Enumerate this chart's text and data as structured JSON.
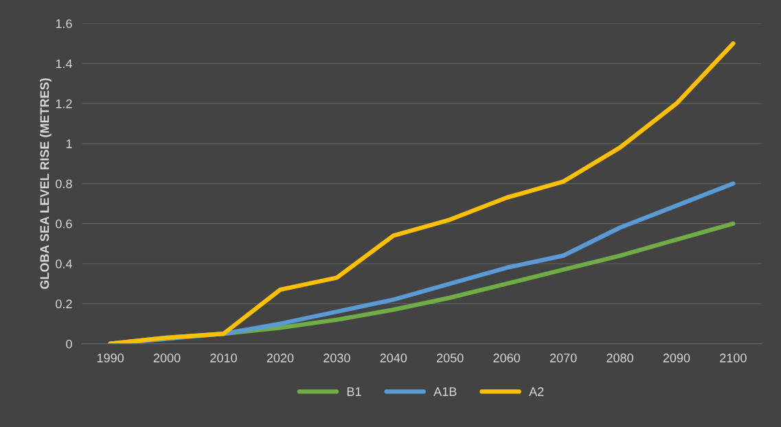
{
  "chart_data": {
    "type": "line",
    "ylabel": "GLOBA SEA LEVEL RISE (METRES)",
    "categories": [
      "1990",
      "2000",
      "2010",
      "2020",
      "2030",
      "2040",
      "2050",
      "2060",
      "2070",
      "2080",
      "2090",
      "2100"
    ],
    "series": [
      {
        "name": "B1",
        "color": "#70ad47",
        "values": [
          0,
          0.03,
          0.05,
          0.08,
          0.12,
          0.17,
          0.23,
          0.3,
          0.37,
          0.44,
          0.52,
          0.6
        ]
      },
      {
        "name": "A1B",
        "color": "#5b9bd5",
        "values": [
          0,
          null,
          0.05,
          0.1,
          0.16,
          0.22,
          0.3,
          0.38,
          0.44,
          0.58,
          0.69,
          0.8
        ]
      },
      {
        "name": "A2",
        "color": "#ffc000",
        "values": [
          0,
          0.03,
          0.05,
          0.27,
          0.33,
          0.54,
          0.62,
          0.73,
          0.81,
          0.98,
          1.2,
          1.5
        ]
      }
    ],
    "ylim": [
      0,
      1.6
    ],
    "yticks": [
      0,
      0.2,
      0.4,
      0.6,
      0.8,
      1,
      1.2,
      1.4,
      1.6
    ],
    "grid": "y",
    "legend": "bottom",
    "marker": "none",
    "line_style": "solid"
  }
}
